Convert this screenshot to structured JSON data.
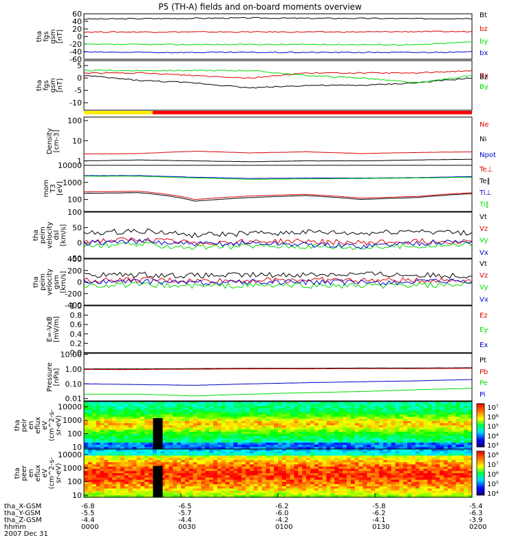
{
  "title": "P5 (TH-A) fields and on-board moments overview",
  "date_label": "2007 Dec 31",
  "xaxis": {
    "hhmm_ticks": [
      "0000",
      "0030",
      "0100",
      "0130",
      "0200"
    ],
    "rows": [
      {
        "label": "tha_X-GSM",
        "values": [
          "-6.8",
          "-6.5",
          "-6.2",
          "-5.8",
          "-5.4"
        ]
      },
      {
        "label": "tha_Y-GSM",
        "values": [
          "-5.5",
          "-5.7",
          "-6.0",
          "-6.2",
          "-6.3"
        ]
      },
      {
        "label": "tha_Z-GSM",
        "values": [
          "-4.4",
          "-4.4",
          "-4.2",
          "-4.1",
          "-3.9"
        ]
      },
      {
        "label": "hhmm",
        "values": [
          "0000",
          "0030",
          "0100",
          "0130",
          "0200"
        ]
      }
    ]
  },
  "colors": {
    "black": "#000000",
    "red": "#dd0000",
    "green": "#00dd00",
    "blue": "#0000cc"
  },
  "chart_data": [
    {
      "type": "line",
      "panel": "fgs_gsm_full",
      "ylabel": [
        "tha",
        "fgs",
        "gsm",
        "[nT]"
      ],
      "ylim": [
        -60,
        60
      ],
      "yticks": [
        "60",
        "40",
        "20",
        "0",
        "-20",
        "-40",
        "-60"
      ],
      "series": [
        {
          "name": "Bt",
          "color": "#000000",
          "values": [
            46,
            47,
            48,
            49,
            48,
            48,
            47,
            48
          ]
        },
        {
          "name": "bz",
          "color": "#dd0000",
          "values": [
            12,
            12,
            12,
            12,
            12,
            12,
            13,
            13
          ]
        },
        {
          "name": "by",
          "color": "#00dd00",
          "values": [
            -21,
            -21,
            -21,
            -21,
            -21,
            -21,
            -22,
            -14
          ]
        },
        {
          "name": "bx",
          "color": "#0000cc",
          "values": [
            -41,
            -42,
            -42,
            -42,
            -42,
            -42,
            -42,
            -41
          ]
        }
      ]
    },
    {
      "type": "line",
      "panel": "fgs_gsm_detrended",
      "ylabel": [
        "tha",
        "fgs",
        "gsm",
        "[nT]"
      ],
      "ylim": [
        -13,
        7
      ],
      "yticks": [
        "5",
        "0",
        "-5",
        "-10"
      ],
      "series": [
        {
          "name": "Bx",
          "color": "#dd0000",
          "values": [
            2,
            2,
            1,
            0,
            2,
            2,
            2,
            3
          ]
        },
        {
          "name": "Bz",
          "color": "#000000",
          "values": [
            1,
            -1,
            -2,
            -4,
            -3,
            -3,
            -2,
            0
          ]
        },
        {
          "name": "By",
          "color": "#00dd00",
          "values": [
            3,
            3,
            3,
            3,
            1,
            0,
            -2,
            1
          ]
        }
      ],
      "mode_bar": [
        {
          "from": 0.0,
          "to": 0.177,
          "color": "#ffee00"
        },
        {
          "from": 0.177,
          "to": 1.0,
          "color": "#ff0000"
        }
      ]
    },
    {
      "type": "line",
      "panel": "density",
      "ylabel": [
        "Density",
        "[cm-3]"
      ],
      "ylim": [
        0.6,
        150
      ],
      "scale": "log",
      "yticks": [
        "100",
        "10",
        "1"
      ],
      "series": [
        {
          "name": "Ne",
          "color": "#dd0000",
          "values": [
            2.2,
            2.3,
            3.0,
            2.5,
            2.8,
            2.3,
            2.6,
            2.8
          ]
        },
        {
          "name": "Ni",
          "color": "#000000",
          "values": [
            1.0,
            1.1,
            1.0,
            0.9,
            1.0,
            1.0,
            1.1,
            1.2
          ]
        },
        {
          "name": "Npot",
          "color": "#0000cc",
          "values": []
        }
      ]
    },
    {
      "type": "line",
      "panel": "temperature",
      "ylabel": [
        "mom",
        "T3",
        "[eV]"
      ],
      "ylim": [
        20,
        10000
      ],
      "scale": "log",
      "yticks": [
        "10000",
        "1000",
        "100"
      ],
      "series": [
        {
          "name": "Te⊥",
          "color": "#dd0000",
          "values": [
            280,
            300,
            100,
            160,
            200,
            120,
            150,
            250
          ]
        },
        {
          "name": "Te∥",
          "color": "#000000",
          "values": [
            230,
            250,
            80,
            130,
            170,
            100,
            130,
            220
          ]
        },
        {
          "name": "Ti⊥",
          "color": "#0000cc",
          "values": [
            2500,
            2500,
            2000,
            1700,
            1800,
            1800,
            1900,
            2200
          ]
        },
        {
          "name": "Ti∥",
          "color": "#00dd00",
          "values": [
            2300,
            2300,
            1800,
            1500,
            1600,
            1700,
            1800,
            2000
          ]
        }
      ]
    },
    {
      "type": "line",
      "panel": "peim_velocity",
      "ylabel": [
        "tha",
        "peim",
        "velocity",
        "dsl",
        "[km/s]"
      ],
      "ylim": [
        -50,
        100
      ],
      "yticks": [
        "100",
        "50",
        "0",
        "-50"
      ],
      "series": [
        {
          "name": "Vt",
          "color": "#000000",
          "values": [
            30,
            40,
            25,
            30,
            35,
            30,
            40,
            30
          ]
        },
        {
          "name": "Vz",
          "color": "#dd0000",
          "values": [
            5,
            10,
            0,
            5,
            5,
            0,
            5,
            5
          ]
        },
        {
          "name": "Vy",
          "color": "#00dd00",
          "values": [
            -10,
            -5,
            -15,
            -10,
            -10,
            -15,
            -10,
            -5
          ]
        },
        {
          "name": "Vx",
          "color": "#0000cc",
          "values": [
            0,
            5,
            -5,
            0,
            -5,
            -10,
            0,
            5
          ]
        }
      ]
    },
    {
      "type": "line",
      "panel": "peim_velocity_gsm",
      "ylabel": [
        "tha",
        "peim",
        "velocity",
        "gsm",
        "[km/s]"
      ],
      "ylim": [
        -400,
        400
      ],
      "yticks": [
        "400",
        "200",
        "0",
        "-200",
        "-400"
      ],
      "series": [
        {
          "name": "Vt",
          "color": "#000000",
          "values": [
            120,
            130,
            110,
            120,
            130,
            140,
            120,
            110
          ]
        },
        {
          "name": "Vz",
          "color": "#dd0000",
          "values": [
            30,
            40,
            20,
            30,
            40,
            30,
            30,
            30
          ]
        },
        {
          "name": "Vy",
          "color": "#00dd00",
          "values": [
            -60,
            -50,
            -70,
            -60,
            -60,
            -70,
            -60,
            -50
          ]
        },
        {
          "name": "Vx",
          "color": "#0000cc",
          "values": [
            0,
            10,
            -10,
            0,
            0,
            -10,
            0,
            10
          ]
        }
      ]
    },
    {
      "type": "line",
      "panel": "e_field",
      "ylabel": [
        "E=-VxB",
        "[mV/m]"
      ],
      "ylim": [
        0,
        1
      ],
      "yticks": [
        "1.0",
        "0.8",
        "0.6",
        "0.4",
        "0.2",
        "0.0"
      ],
      "series": [
        {
          "name": "Ez",
          "color": "#dd0000",
          "values": []
        },
        {
          "name": "Ey",
          "color": "#00dd00",
          "values": []
        },
        {
          "name": "Ex",
          "color": "#0000cc",
          "values": []
        }
      ]
    },
    {
      "type": "line",
      "panel": "pressure",
      "ylabel": [
        "Pressure",
        "[nPa]"
      ],
      "ylim": [
        0.007,
        12
      ],
      "scale": "log",
      "yticks": [
        "10.00",
        "1.00",
        "0.10",
        "0.01"
      ],
      "series": [
        {
          "name": "Pt",
          "color": "#000000",
          "values": [
            1.05,
            1.05,
            1.1,
            1.15,
            1.15,
            1.2,
            1.2,
            1.25
          ]
        },
        {
          "name": "Pb",
          "color": "#dd0000",
          "values": [
            0.95,
            0.95,
            1.0,
            1.05,
            1.05,
            1.1,
            1.1,
            1.15
          ]
        },
        {
          "name": "Pe",
          "color": "#00dd00",
          "values": [
            0.02,
            0.02,
            0.015,
            0.02,
            0.025,
            0.03,
            0.04,
            0.05
          ]
        },
        {
          "name": "Pi",
          "color": "#0000cc",
          "values": [
            0.1,
            0.09,
            0.08,
            0.1,
            0.12,
            0.14,
            0.16,
            0.2
          ]
        }
      ]
    },
    {
      "type": "heatmap",
      "panel": "peir_spectrogram",
      "ylabel": [
        "tha",
        "peir",
        "en",
        "eflux",
        "eV",
        "(cm^2-s-",
        "sr-eV)"
      ],
      "ylim": [
        7,
        25000
      ],
      "scale": "log",
      "yticks": [
        "10000",
        "1000",
        "100",
        "10"
      ],
      "colorbar": {
        "labels": [
          "10⁷",
          "10⁶",
          "10⁵",
          "10⁴",
          "10³"
        ]
      }
    },
    {
      "type": "heatmap",
      "panel": "peer_spectrogram",
      "ylabel": [
        "tha",
        "peer",
        "en",
        "eflux",
        "eV",
        "(cm^2-s-",
        "sr-eV)"
      ],
      "ylim": [
        7,
        25000
      ],
      "scale": "log",
      "yticks": [
        "10000",
        "1000",
        "100",
        "10"
      ],
      "colorbar": {
        "labels": [
          "10⁸",
          "10⁷",
          "10⁶",
          "10⁵",
          "10⁴"
        ]
      }
    }
  ]
}
